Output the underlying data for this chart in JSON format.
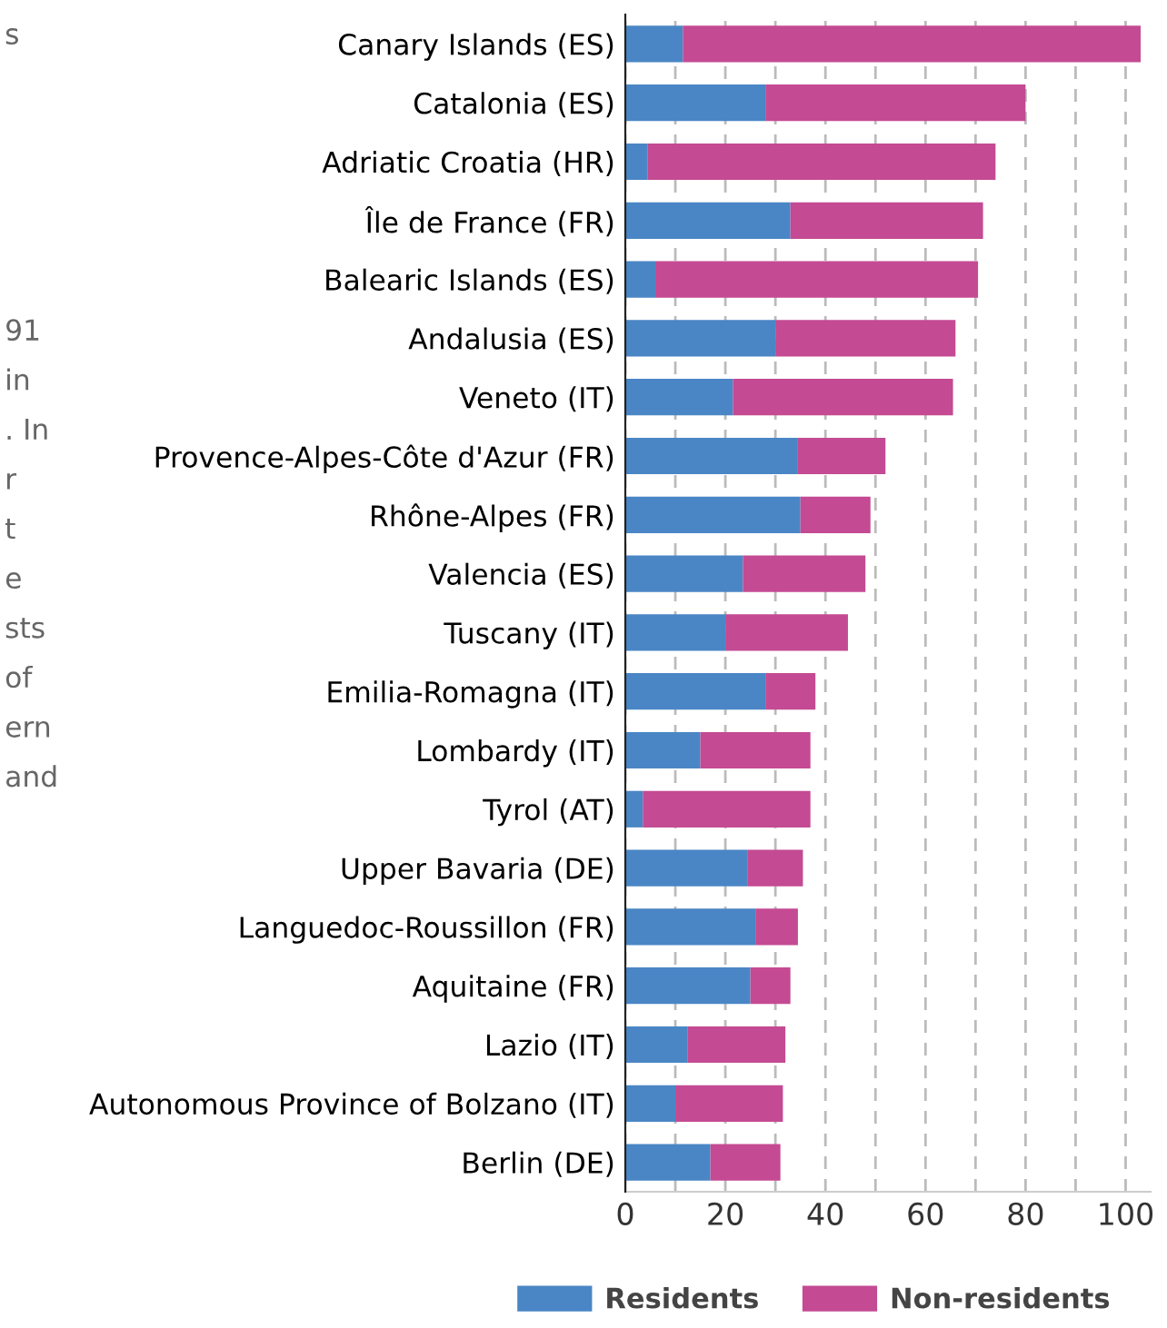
{
  "chart_data": {
    "type": "bar",
    "orientation": "horizontal",
    "stacked": true,
    "categories": [
      "Canary Islands (ES)",
      "Catalonia (ES)",
      "Adriatic Croatia (HR)",
      "Île de France (FR)",
      "Balearic Islands (ES)",
      "Andalusia (ES)",
      "Veneto (IT)",
      "Provence-Alpes-Côte d'Azur (FR)",
      "Rhône-Alpes (FR)",
      "Valencia (ES)",
      "Tuscany (IT)",
      "Emilia-Romagna (IT)",
      "Lombardy (IT)",
      "Tyrol (AT)",
      "Upper Bavaria (DE)",
      "Languedoc-Roussillon (FR)",
      "Aquitaine (FR)",
      "Lazio (IT)",
      "Autonomous Province of Bolzano (IT)",
      "Berlin (DE)"
    ],
    "series": [
      {
        "name": "Residents",
        "color": "#4a86c5",
        "values": [
          11.5,
          28,
          4.5,
          33,
          6,
          30,
          21.5,
          34.5,
          35,
          23.5,
          20,
          28,
          15,
          3.5,
          24.5,
          26,
          25,
          12.5,
          10,
          17
        ]
      },
      {
        "name": "Non-residents",
        "color": "#c44a93",
        "values": [
          91.5,
          52,
          69.5,
          38.5,
          64.5,
          36,
          44,
          17.5,
          14,
          24.5,
          24.5,
          10,
          22,
          33.5,
          11,
          8.5,
          8,
          19.5,
          21.5,
          14
        ]
      }
    ],
    "xlim": [
      0,
      105
    ],
    "xticks": [
      0,
      {
        "value": 10,
        "label": null
      },
      20,
      {
        "value": 30,
        "label": null
      },
      40,
      {
        "value": 50,
        "label": null
      },
      60,
      {
        "value": 70,
        "label": null
      },
      80,
      {
        "value": 90,
        "label": null
      },
      100
    ],
    "grid": "x",
    "legend": "bottom",
    "annotations": [
      "s",
      "91",
      "in",
      ". In",
      "r",
      "t",
      "e",
      "sts",
      "of",
      "ern",
      "and"
    ]
  }
}
